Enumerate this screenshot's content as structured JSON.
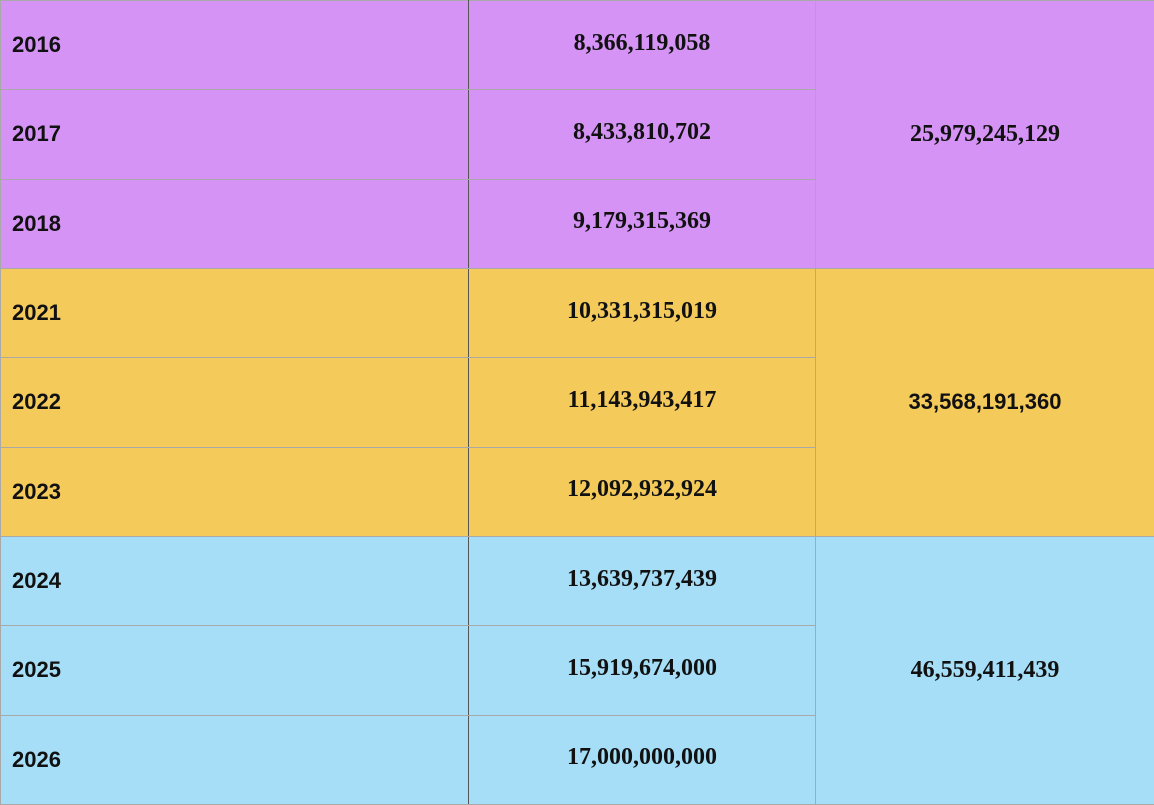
{
  "colors": {
    "purple": "#d493f5",
    "yellow": "#f4ca5b",
    "blue": "#a6def7",
    "grid": "#a9a9a9",
    "text": "#111111"
  },
  "groups": [
    {
      "color": "purple",
      "total": "25,979,245,129",
      "rows": [
        {
          "year": "2016",
          "amount": "8,366,119,058"
        },
        {
          "year": "2017",
          "amount": "8,433,810,702"
        },
        {
          "year": "2018",
          "amount": "9,179,315,369"
        }
      ]
    },
    {
      "color": "yellow",
      "total": "33,568,191,360",
      "rows": [
        {
          "year": "2021",
          "amount": "10,331,315,019"
        },
        {
          "year": "2022",
          "amount": "11,143,943,417"
        },
        {
          "year": "2023",
          "amount": "12,092,932,924"
        }
      ]
    },
    {
      "color": "blue",
      "total": "46,559,411,439",
      "rows": [
        {
          "year": "2024",
          "amount": "13,639,737,439"
        },
        {
          "year": "2025",
          "amount": "15,919,674,000"
        },
        {
          "year": "2026",
          "amount": "17,000,000,000"
        }
      ]
    }
  ]
}
